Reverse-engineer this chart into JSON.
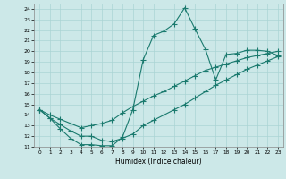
{
  "xlabel": "Humidex (Indice chaleur)",
  "bg_color": "#cce8e8",
  "line_color": "#1a7a6e",
  "grid_color": "#aad4d4",
  "xlim": [
    -0.5,
    23.5
  ],
  "ylim": [
    11,
    24.5
  ],
  "xticks": [
    0,
    1,
    2,
    3,
    4,
    5,
    6,
    7,
    8,
    9,
    10,
    11,
    12,
    13,
    14,
    15,
    16,
    17,
    18,
    19,
    20,
    21,
    22,
    23
  ],
  "yticks": [
    11,
    12,
    13,
    14,
    15,
    16,
    17,
    18,
    19,
    20,
    21,
    22,
    23,
    24
  ],
  "curve1_x": [
    0,
    1,
    2,
    3,
    4,
    5,
    6,
    7,
    8,
    9,
    10,
    11,
    12,
    13,
    14,
    15,
    16,
    17,
    18,
    19,
    20,
    21,
    22,
    23
  ],
  "curve1_y": [
    14.5,
    13.7,
    12.7,
    11.8,
    11.2,
    11.2,
    11.1,
    11.1,
    11.9,
    14.5,
    19.2,
    21.5,
    21.9,
    22.6,
    24.1,
    22.1,
    20.2,
    17.3,
    19.7,
    19.8,
    20.1,
    20.1,
    20.0,
    19.6
  ],
  "curve2_x": [
    0,
    1,
    2,
    3,
    4,
    5,
    6,
    7,
    8,
    9,
    10,
    11,
    12,
    13,
    14,
    15,
    16,
    17,
    18,
    19,
    20,
    21,
    22,
    23
  ],
  "curve2_y": [
    14.5,
    14.0,
    13.6,
    13.2,
    12.8,
    13.0,
    13.2,
    13.5,
    14.2,
    14.8,
    15.3,
    15.8,
    16.2,
    16.7,
    17.2,
    17.7,
    18.2,
    18.5,
    18.8,
    19.1,
    19.4,
    19.6,
    19.8,
    20.0
  ],
  "curve3_x": [
    0,
    1,
    2,
    3,
    4,
    5,
    6,
    7,
    8,
    9,
    10,
    11,
    12,
    13,
    14,
    15,
    16,
    17,
    18,
    19,
    20,
    21,
    22,
    23
  ],
  "curve3_y": [
    14.5,
    13.7,
    13.1,
    12.5,
    12.0,
    12.0,
    11.6,
    11.5,
    11.8,
    12.2,
    13.0,
    13.5,
    14.0,
    14.5,
    15.0,
    15.6,
    16.2,
    16.8,
    17.3,
    17.8,
    18.3,
    18.7,
    19.1,
    19.5
  ]
}
